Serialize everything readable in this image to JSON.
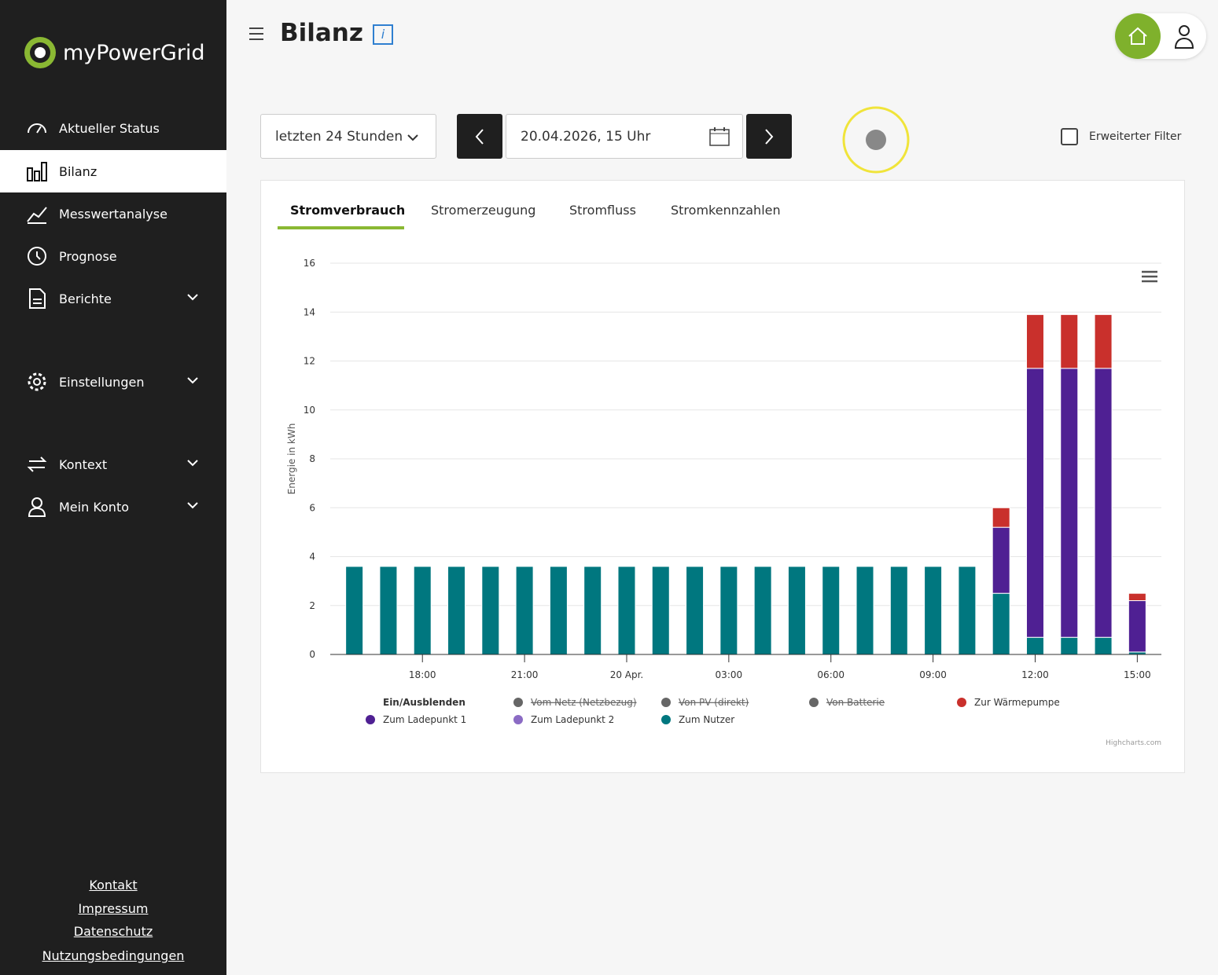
{
  "sidebar": {
    "logo": "myPowerGrid",
    "nav": [
      "Aktueller Status",
      "Bilanz",
      "Messwertanalyse",
      "Prognose",
      "Berichte",
      "Einstellungen",
      "Kontext",
      "Mein Konto"
    ],
    "footer_links": [
      "Kontakt",
      "Impressum",
      "Datenschutz",
      "Nutzungsbedingungen"
    ]
  },
  "header": {
    "title": "Bilanz"
  },
  "controls": {
    "period": "letzten 24 Stunden",
    "date": "20.04.2026, 15 Uhr",
    "filter": "Erweiterter Filter"
  },
  "tabs": [
    "Stromverbrauch",
    "Stromerzeugung",
    "Stromfluss",
    "Stromkennzahlen"
  ],
  "chart_data": {
    "type": "stacked_bar",
    "y_label": "Energie in kWh",
    "categories": [
      null,
      null,
      "18:00",
      null,
      null,
      "21:00",
      null,
      null,
      "20 Apr.",
      null,
      null,
      "03:00",
      null,
      null,
      "06:00",
      null,
      null,
      "09:00",
      null,
      null,
      "12:00",
      null,
      null,
      "15:00"
    ],
    "ylim": [
      0,
      16
    ],
    "yticks": [
      0,
      2,
      4,
      6,
      8,
      10,
      12,
      14,
      16
    ],
    "grid": true,
    "legend_title": "Ein/Ausblenden",
    "series": [
      {
        "name": "Vom Netz (Netzbezug)",
        "color": "#666666",
        "visible": false
      },
      {
        "name": "Von PV (direkt)",
        "color": "#666666",
        "visible": false
      },
      {
        "name": "Von Batterie",
        "color": "#666666",
        "visible": false
      },
      {
        "name": "Zur Wärmepumpe",
        "color": "#c9302c",
        "visible": true,
        "values": [
          0,
          0,
          0,
          0,
          0,
          0,
          0,
          0,
          0,
          0,
          0,
          0,
          0,
          0,
          0,
          0,
          0,
          0,
          0,
          0.8,
          2.2,
          2.2,
          2.2,
          0.3
        ]
      },
      {
        "name": "Zum Ladepunkt 1",
        "color": "#4f2093",
        "visible": true,
        "values": [
          0,
          0,
          0,
          0,
          0,
          0,
          0,
          0,
          0,
          0,
          0,
          0,
          0,
          0,
          0,
          0,
          0,
          0,
          0,
          2.7,
          11.0,
          11.0,
          11.0,
          2.1
        ]
      },
      {
        "name": "Zum Ladepunkt 2",
        "color": "#8b6bc4",
        "visible": true,
        "values": [
          0,
          0,
          0,
          0,
          0,
          0,
          0,
          0,
          0,
          0,
          0,
          0,
          0,
          0,
          0,
          0,
          0,
          0,
          0,
          0,
          0,
          0,
          0,
          0
        ]
      },
      {
        "name": "Zum Nutzer",
        "color": "#00777f",
        "visible": true,
        "values": [
          3.6,
          3.6,
          3.6,
          3.6,
          3.6,
          3.6,
          3.6,
          3.6,
          3.6,
          3.6,
          3.6,
          3.6,
          3.6,
          3.6,
          3.6,
          3.6,
          3.6,
          3.6,
          3.6,
          2.5,
          0.7,
          0.7,
          0.7,
          0.1
        ]
      }
    ],
    "credits": "Highcharts.com"
  }
}
